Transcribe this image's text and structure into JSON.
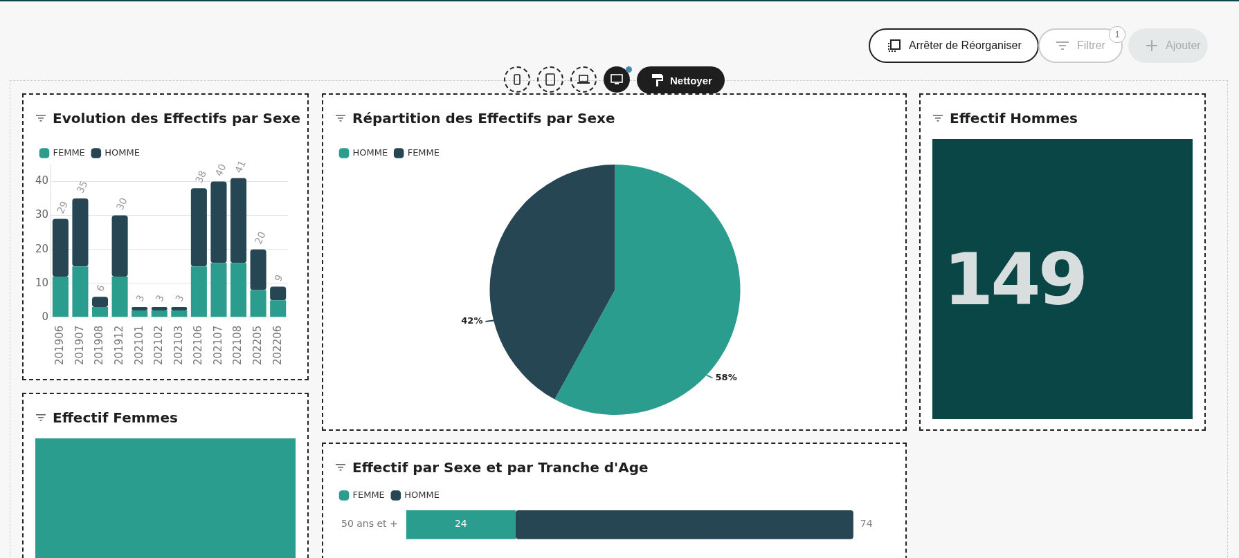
{
  "chart_data": [
    {
      "type": "other",
      "annotations": [
        "Arrêter de Réorganiser",
        "Filtrer",
        "1",
        "Ajouter",
        "Nettoyer"
      ]
    },
    {
      "type": "bar",
      "title": "Evolution des Effectifs par Sexe",
      "categories": [
        "201906",
        "201907",
        "201908",
        "201912",
        "202101",
        "202102",
        "202103",
        "202106",
        "202107",
        "202108",
        "202205",
        "202206"
      ],
      "series": [
        {
          "name": "FEMME",
          "color": "#2a9d8f",
          "values": [
            12,
            15,
            3,
            12,
            2,
            2,
            2,
            15,
            16,
            16,
            8,
            5
          ]
        },
        {
          "name": "HOMME",
          "color": "#264653",
          "values": [
            17,
            20,
            3,
            18,
            1,
            1,
            1,
            23,
            24,
            25,
            12,
            4
          ]
        }
      ],
      "stacked": true,
      "totals": [
        "29",
        "35",
        "6",
        "30",
        "3",
        "3",
        "3",
        "38",
        "40",
        "41",
        "20",
        "9"
      ],
      "ylim": [
        0,
        45
      ],
      "yticks": [
        0,
        10,
        20,
        30,
        40
      ],
      "grid": "y",
      "legend": "top left"
    },
    {
      "type": "pie",
      "title": "Répartition des Effectifs par Sexe",
      "categories": [
        "HOMME",
        "FEMME"
      ],
      "values": [
        58,
        42
      ],
      "colors": [
        "#2a9d8f",
        "#264653"
      ],
      "value_labels": [
        "58%",
        "42%"
      ],
      "legend": "top left"
    },
    {
      "type": "other",
      "title": "Effectif Hommes",
      "annotations": [
        "149"
      ],
      "color": "#0b4646"
    },
    {
      "type": "other",
      "title": "Effectif Femmes",
      "color": "#2a9d8f"
    },
    {
      "type": "bar",
      "title": "Effectif par Sexe et par Tranche d'Age",
      "orientation": "horizontal",
      "stacked": true,
      "categories": [
        "50 ans et +"
      ],
      "series": [
        {
          "name": "FEMME",
          "color": "#2a9d8f",
          "values": [
            24
          ]
        },
        {
          "name": "HOMME",
          "color": "#264653",
          "values": [
            74
          ]
        }
      ],
      "data_labels": true,
      "tick_labels": "y",
      "legend": "top left"
    }
  ]
}
